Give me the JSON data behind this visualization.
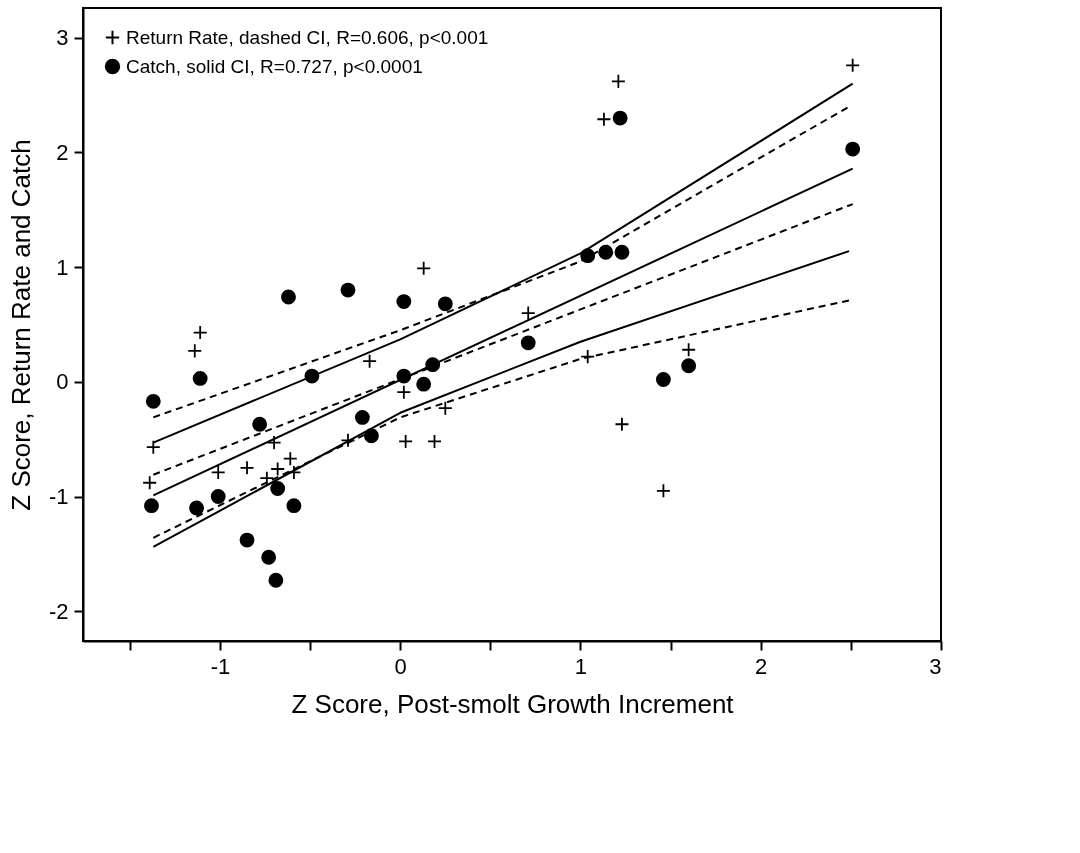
{
  "chart_data": {
    "type": "scatter",
    "xlabel": "Z Score, Post-smolt Growth Increment",
    "ylabel": "Z Score, Return Rate and Catch",
    "xlim": [
      -1.76,
      3
    ],
    "ylim": [
      -2.26,
      3.26
    ],
    "xticks": [
      {
        "value": -1.5,
        "label": null
      },
      -1,
      {
        "value": -0.5,
        "label": null
      },
      0,
      {
        "value": 0.5,
        "label": null
      },
      1,
      {
        "value": 1.5,
        "label": null
      },
      2,
      {
        "value": 2.5,
        "label": null
      },
      3
    ],
    "yticks": [
      -2,
      -1,
      0,
      1,
      2,
      3
    ],
    "grid": false,
    "legend": "top left",
    "series": [
      {
        "name": "Return Rate, dashed CI, R=0.606, p<0.001",
        "marker": "cross",
        "color": "#000000",
        "x": [
          1.21,
          1.13,
          2.51,
          0.13,
          -1.11,
          -1.14,
          -0.17,
          0.02,
          0.25,
          -1.37,
          -0.7,
          -0.29,
          0.03,
          0.19,
          -1.39,
          -1.01,
          -0.85,
          -0.61,
          -0.68,
          -0.59,
          -0.74,
          0.71,
          1.04,
          1.6,
          1.23,
          1.46
        ],
        "values": [
          2.62,
          2.29,
          2.76,
          0.99,
          0.43,
          0.27,
          0.18,
          -0.09,
          -0.23,
          -0.57,
          -0.53,
          -0.51,
          -0.52,
          -0.52,
          -0.88,
          -0.79,
          -0.75,
          -0.67,
          -0.76,
          -0.79,
          -0.84,
          0.6,
          0.22,
          0.28,
          -0.37,
          -0.95
        ]
      },
      {
        "name": "Catch, solid CI, R=0.727, p<0.0001",
        "marker": "circle",
        "color": "#000000",
        "x": [
          -1.37,
          -1.11,
          -0.62,
          -0.29,
          0.02,
          0.25,
          -0.49,
          0.02,
          0.18,
          0.13,
          -0.78,
          -0.21,
          -0.16,
          -1.38,
          -1.13,
          -1.01,
          -0.68,
          -0.59,
          -0.85,
          -0.73,
          -0.69,
          1.04,
          1.14,
          1.23,
          0.71,
          1.46,
          1.6,
          1.22,
          2.51
        ],
        "values": [
          -0.17,
          0.03,
          0.74,
          0.8,
          0.7,
          0.68,
          0.05,
          0.05,
          0.15,
          -0.02,
          -0.37,
          -0.31,
          -0.47,
          -1.08,
          -1.1,
          -1.0,
          -0.93,
          -1.08,
          -1.38,
          -1.53,
          -1.73,
          1.1,
          1.13,
          1.13,
          0.34,
          0.02,
          0.14,
          2.3,
          2.03
        ]
      },
      {
        "type": "line",
        "line_style": "solid",
        "marker": "none",
        "color": "#000000",
        "x": [
          -1.37,
          2.51
        ],
        "values": [
          -0.99,
          1.86
        ]
      },
      {
        "type": "line",
        "line_style": "dashed",
        "marker": "none",
        "color": "#000000",
        "x": [
          -1.37,
          2.51
        ],
        "values": [
          -0.81,
          1.55
        ]
      },
      {
        "type": "line",
        "line_style": "solid",
        "marker": "none",
        "color": "#000000",
        "x": [
          -1.37,
          0,
          1,
          2.51
        ],
        "values": [
          -0.53,
          0.37,
          1.12,
          2.6
        ]
      },
      {
        "type": "line",
        "line_style": "solid",
        "marker": "none",
        "color": "#000000",
        "x": [
          -1.37,
          0,
          1,
          2.49
        ],
        "values": [
          -1.44,
          -0.27,
          0.35,
          1.14
        ]
      },
      {
        "type": "line",
        "line_style": "dashed",
        "marker": "none",
        "color": "#000000",
        "x": [
          -1.37,
          0,
          1,
          2.49
        ],
        "values": [
          -0.31,
          0.45,
          1.05,
          2.4
        ]
      },
      {
        "type": "line",
        "line_style": "dashed",
        "marker": "none",
        "color": "#000000",
        "x": [
          -1.37,
          0,
          1,
          2.49
        ],
        "values": [
          -1.36,
          -0.31,
          0.2,
          0.71
        ]
      }
    ]
  }
}
